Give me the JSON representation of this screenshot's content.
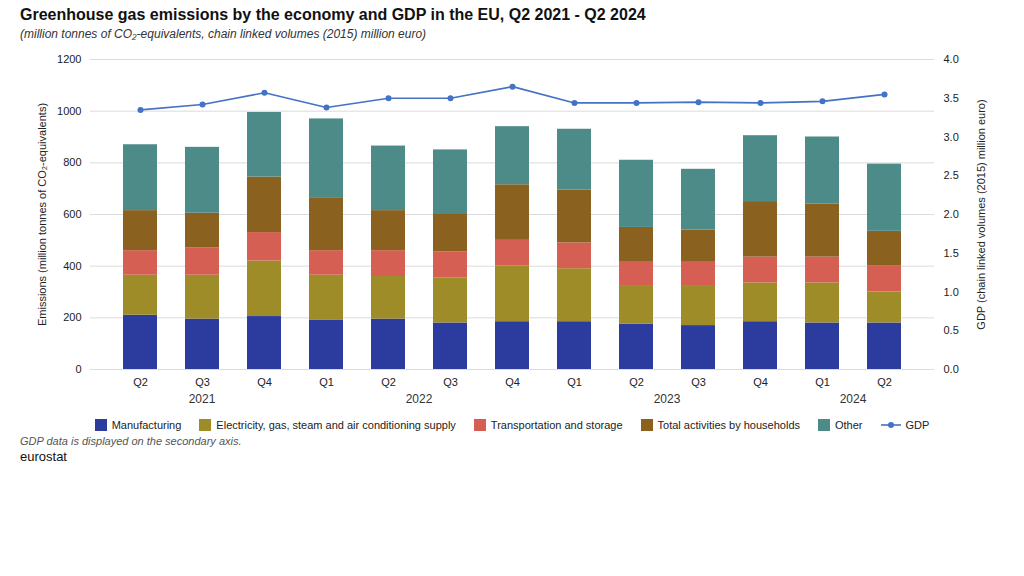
{
  "chart_data": {
    "type": "bar",
    "stacked": true,
    "title": "Greenhouse gas emissions by the economy and GDP in the EU, Q2 2021 - Q2 2024",
    "subtitle": "(million tonnes of CO₂-equivalents, chain linked volumes (2015) million euro)",
    "ylabel": "Emissions (million tonnes of CO₂-equivalents)",
    "y2label": "GDP (chain linked volumes (2015) million euro)",
    "categories": [
      "Q2",
      "Q3",
      "Q4",
      "Q1",
      "Q2",
      "Q3",
      "Q4",
      "Q1",
      "Q2",
      "Q3",
      "Q4",
      "Q1",
      "Q2"
    ],
    "annotations": [
      "2021",
      "2022",
      "2023",
      "2024"
    ],
    "note": "GDP data is displayed on the secondary axis.",
    "source": "eurostat",
    "series": [
      {
        "name": "Manufacturing",
        "color": "#2b3c9e",
        "values": [
          210,
          195,
          205,
          190,
          195,
          180,
          185,
          185,
          175,
          170,
          185,
          180,
          180
        ]
      },
      {
        "name": "Electricity, gas, steam and air conditioning supply",
        "color": "#9e8c28",
        "values": [
          155,
          170,
          215,
          175,
          165,
          175,
          215,
          205,
          150,
          155,
          150,
          155,
          120
        ]
      },
      {
        "name": "Transportation and storage",
        "color": "#d45f52",
        "values": [
          95,
          105,
          110,
          95,
          100,
          100,
          100,
          100,
          90,
          90,
          100,
          100,
          100
        ]
      },
      {
        "name": "Total activities by households",
        "color": "#8b6120",
        "values": [
          155,
          135,
          215,
          205,
          155,
          145,
          215,
          205,
          135,
          125,
          215,
          205,
          135
        ]
      },
      {
        "name": "Other",
        "color": "#4d8b88",
        "values": [
          255,
          255,
          250,
          305,
          250,
          250,
          225,
          235,
          260,
          235,
          255,
          260,
          260
        ]
      },
      {
        "name": "GDP",
        "color": "#4472c4",
        "type": "line",
        "axis": "y2",
        "marker": "circle",
        "values": [
          3.35,
          3.42,
          3.57,
          3.38,
          3.5,
          3.5,
          3.65,
          3.44,
          3.44,
          3.45,
          3.44,
          3.46,
          3.55
        ]
      }
    ],
    "ylim": [
      0,
      1200
    ],
    "yticks": [
      0,
      200,
      400,
      600,
      800,
      1000,
      1200
    ],
    "y2lim": [
      0,
      4.0
    ],
    "y2ticks": [
      {
        "value": 0,
        "label": "0.0"
      },
      {
        "value": 0.5,
        "label": "0.5"
      },
      {
        "value": 1.0,
        "label": "1.0"
      },
      {
        "value": 1.5,
        "label": "1.5"
      },
      {
        "value": 2.0,
        "label": "2.0"
      },
      {
        "value": 2.5,
        "label": "2.5"
      },
      {
        "value": 3.0,
        "label": "3.0"
      },
      {
        "value": 3.5,
        "label": "3.5"
      },
      {
        "value": 4.0,
        "label": "4.0"
      }
    ],
    "grid": true,
    "legend": "bottom"
  }
}
